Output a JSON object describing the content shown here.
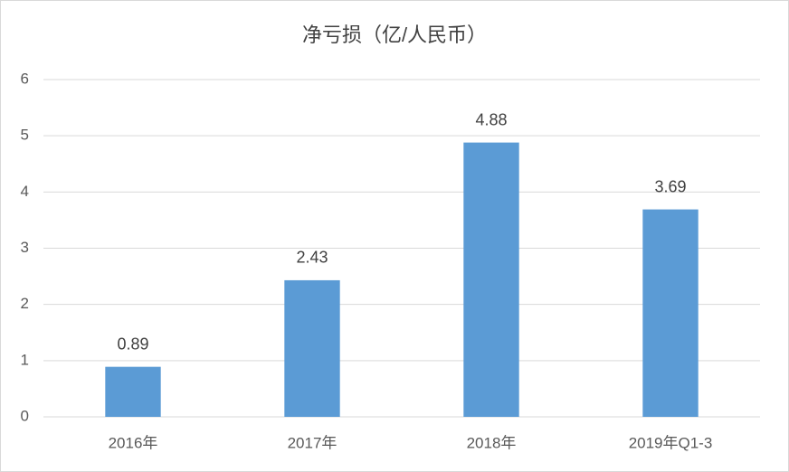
{
  "chart_data": {
    "type": "bar",
    "title": "净亏损（亿/人民币）",
    "categories": [
      "2016年",
      "2017年",
      "2018年",
      "2019年Q1-3"
    ],
    "values": [
      0.89,
      2.43,
      4.88,
      3.69
    ],
    "color": "#5b9bd5",
    "ylim": [
      0,
      6
    ],
    "yticks": [
      0,
      1,
      2,
      3,
      4,
      5,
      6
    ],
    "grid": true,
    "data_labels": true
  }
}
